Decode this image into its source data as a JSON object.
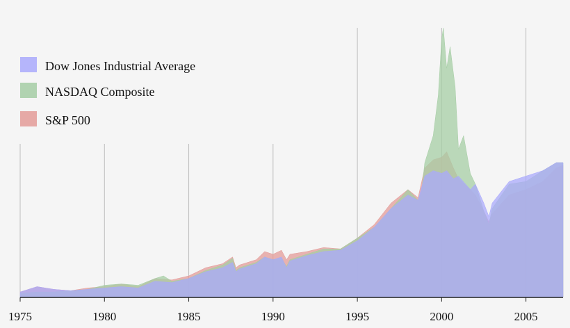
{
  "chart_data": {
    "type": "area",
    "title": "",
    "xlabel": "",
    "ylabel": "",
    "xlim": [
      1975,
      2007.2
    ],
    "ylim": [
      0,
      100
    ],
    "y_unit": "relative index (no axis labels shown)",
    "grid": "vertical lines at 5-year ticks",
    "legend_position": "top-left",
    "x_ticks": [
      {
        "value": 1975,
        "label": "1975"
      },
      {
        "value": 1980,
        "label": "1980"
      },
      {
        "value": 1985,
        "label": "1985"
      },
      {
        "value": 1990,
        "label": "1990"
      },
      {
        "value": 1995,
        "label": "1995"
      },
      {
        "value": 2000,
        "label": "2000"
      },
      {
        "value": 2005,
        "label": "2005"
      }
    ],
    "series": [
      {
        "name": "S&P 500",
        "color": "#e39b98",
        "x": [
          1975,
          1976,
          1977,
          1978,
          1979,
          1980,
          1981,
          1982,
          1983,
          1984,
          1985,
          1986,
          1987,
          1987.6,
          1987.8,
          1988,
          1989,
          1989.5,
          1990,
          1990.5,
          1990.8,
          1991,
          1992,
          1993,
          1994,
          1995,
          1996,
          1997,
          1998,
          1998.6,
          1999,
          1999.5,
          2000,
          2000.3,
          2000.7,
          2001,
          2001.7,
          2002,
          2002.5,
          2002.8,
          2003,
          2004,
          2005,
          2006,
          2006.8,
          2007.2
        ],
        "values": [
          2.0,
          4.0,
          3.0,
          2.5,
          3.5,
          4.0,
          5.0,
          4.0,
          7.0,
          6.5,
          8.0,
          11.0,
          12.5,
          15.0,
          11.0,
          12.0,
          14.0,
          17.0,
          16.0,
          17.5,
          14.0,
          16.0,
          17.0,
          18.5,
          18.0,
          22.0,
          27.0,
          35.0,
          40.0,
          37.0,
          48.0,
          51.0,
          52.0,
          54.0,
          48.0,
          44.0,
          40.0,
          38.0,
          32.0,
          28.0,
          31.0,
          38.0,
          40.0,
          43.0,
          48.0,
          49.0
        ]
      },
      {
        "name": "NASDAQ Composite",
        "color": "#a5cda4",
        "x": [
          1975,
          1976,
          1977,
          1978,
          1979,
          1980,
          1981,
          1982,
          1983,
          1983.5,
          1984,
          1985,
          1986,
          1987,
          1987.6,
          1987.8,
          1988,
          1989,
          1989.5,
          1990,
          1990.5,
          1990.8,
          1991,
          1992,
          1993,
          1994,
          1995,
          1996,
          1997,
          1998,
          1998.6,
          1998.8,
          1999,
          1999.5,
          1999.8,
          2000,
          2000.1,
          2000.3,
          2000.5,
          2000.8,
          2001,
          2001.3,
          2001.7,
          2002,
          2002.5,
          2002.8,
          2003,
          2004,
          2005,
          2006,
          2006.8,
          2007.2
        ],
        "values": [
          1.5,
          2.0,
          2.0,
          2.5,
          3.0,
          4.5,
          5.0,
          4.5,
          7.0,
          8.0,
          6.0,
          7.0,
          10.0,
          12.0,
          14.5,
          10.0,
          11.0,
          13.0,
          15.0,
          14.0,
          14.5,
          11.5,
          14.0,
          16.0,
          18.0,
          18.0,
          22.0,
          26.0,
          33.0,
          40.0,
          36.0,
          39.0,
          50.0,
          60.0,
          75.0,
          96.0,
          100.0,
          85.0,
          93.0,
          78.0,
          55.0,
          60.0,
          46.0,
          42.0,
          32.0,
          27.0,
          33.0,
          42.0,
          43.0,
          47.0,
          50.0,
          50.0
        ]
      },
      {
        "name": "Dow Jones Industrial Average",
        "color": "#a9a9fb",
        "x": [
          1975,
          1976,
          1977,
          1978,
          1979,
          1980,
          1981,
          1982,
          1983,
          1984,
          1985,
          1986,
          1987,
          1987.6,
          1987.8,
          1988,
          1989,
          1989.5,
          1990,
          1990.5,
          1990.8,
          1991,
          1992,
          1993,
          1994,
          1995,
          1996,
          1997,
          1998,
          1998.6,
          1999,
          1999.5,
          2000,
          2000.3,
          2000.7,
          2001,
          2001.7,
          2002,
          2002.5,
          2002.8,
          2003,
          2004,
          2005,
          2006,
          2006.8,
          2007.2
        ],
        "values": [
          2.0,
          4.0,
          3.0,
          2.5,
          3.0,
          3.5,
          4.0,
          3.5,
          6.0,
          5.5,
          7.0,
          9.5,
          11.0,
          13.0,
          9.5,
          10.5,
          12.5,
          15.0,
          14.0,
          15.0,
          11.0,
          13.5,
          15.5,
          17.0,
          17.5,
          21.0,
          26.0,
          33.0,
          38.0,
          36.0,
          45.0,
          47.0,
          46.0,
          47.0,
          44.0,
          45.0,
          40.0,
          42.0,
          35.0,
          30.0,
          35.0,
          43.0,
          45.0,
          47.0,
          50.0,
          50.0
        ]
      }
    ],
    "legend": [
      "Dow Jones Industrial Average",
      "NASDAQ Composite",
      "S&P 500"
    ]
  }
}
